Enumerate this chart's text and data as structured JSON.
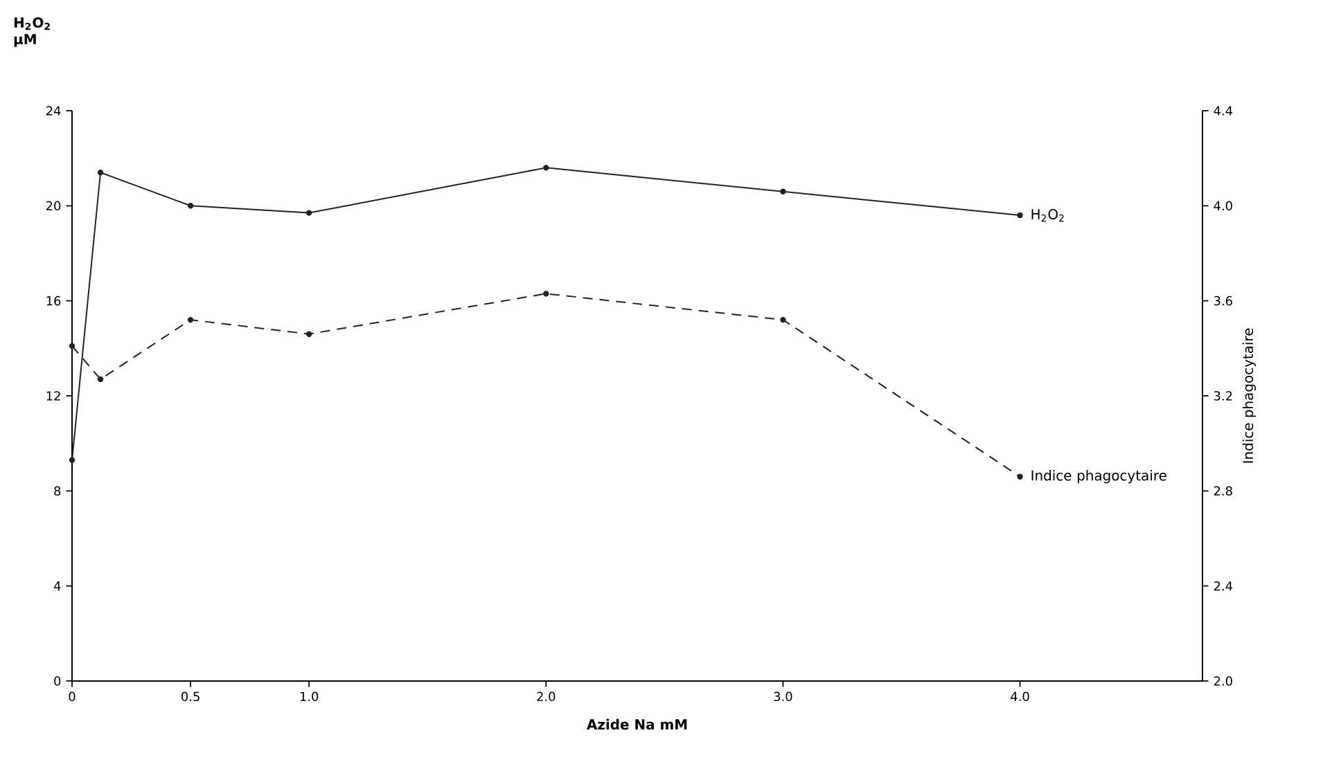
{
  "chart_data": {
    "type": "line",
    "xlabel": "Azide Na mM",
    "ylabel": "H$_{2}$O$_{2}$ µM",
    "y2label": "Indice phagocytaire",
    "x": [
      0,
      0.12,
      0.5,
      1.0,
      2.0,
      3.0,
      4.0
    ],
    "series": [
      {
        "name": "H$_{2}$O$_{2}$",
        "color": "#222222",
        "line_style": "solid",
        "values": [
          9.3,
          21.4,
          20.0,
          19.7,
          21.6,
          20.6,
          19.6
        ]
      },
      {
        "name": "Indice phagocytaire",
        "color": "#222222",
        "line_style": "dashed",
        "axis": "y2",
        "values": [
          3.41,
          3.27,
          3.52,
          3.46,
          3.63,
          3.52,
          2.86
        ]
      }
    ],
    "marker": "circle",
    "xlim": [
      0,
      4.77
    ],
    "xticks": [
      0,
      0.5,
      {
        "value": 1.0,
        "label": "1.0"
      },
      {
        "value": 2.0,
        "label": "2.0"
      },
      {
        "value": 3.0,
        "label": "3.0"
      },
      {
        "value": 4.0,
        "label": "4.0"
      }
    ],
    "ylim": [
      0,
      24
    ],
    "yticks": [
      0,
      4,
      8,
      12,
      16,
      20,
      24
    ],
    "y2lim": [
      2.0,
      4.4
    ],
    "y2ticks": [
      {
        "value": 2.0,
        "label": "2.0"
      },
      2.4,
      2.8,
      3.2,
      3.6,
      {
        "value": 4.0,
        "label": "4.0"
      },
      4.4
    ]
  }
}
